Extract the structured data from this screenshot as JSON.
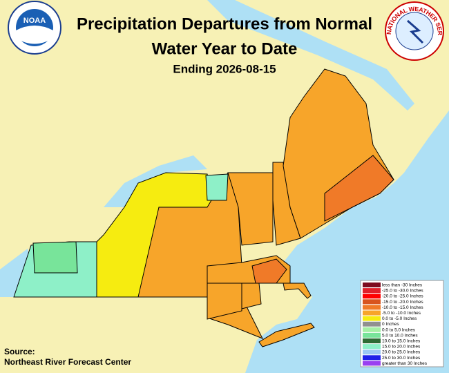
{
  "header": {
    "title": "Precipitation Departures from Normal",
    "subtitle": "Water Year to Date",
    "date_line": "Ending 2026-08-15"
  },
  "logos": {
    "noaa": "NOAA",
    "nws": "NATIONAL WEATHER SERVICE"
  },
  "source": {
    "label": "Source:",
    "text": "Northeast River Forecast Center"
  },
  "legend": {
    "items": [
      {
        "label": "less than -30 Inches",
        "color": "#7d0a1e"
      },
      {
        "label": "-25.0 to -30.0 Inches",
        "color": "#e0202a"
      },
      {
        "label": "-20.0 to -25.0 Inches",
        "color": "#ff0000"
      },
      {
        "label": "-15.0 to -20.0 Inches",
        "color": "#d8541e"
      },
      {
        "label": "-10.0 to -15.0 Inches",
        "color": "#f07a28"
      },
      {
        "label": "-5.0 to -10.0 Inches",
        "color": "#f7a52a"
      },
      {
        "label": "0.0 to -5.0 Inches",
        "color": "#f6ec10"
      },
      {
        "label": "0 Inches",
        "color": "#909090"
      },
      {
        "label": "0.0 to 5.0 Inches",
        "color": "#a6f0a6"
      },
      {
        "label": "5.0 to 10.0 Inches",
        "color": "#78e49a"
      },
      {
        "label": "10.0 to 15.0 Inches",
        "color": "#2e6b34"
      },
      {
        "label": "15.0 to 20.0 Inches",
        "color": "#8ef0c8"
      },
      {
        "label": "20.0 to 25.0 Inches",
        "color": "#9cc8f4"
      },
      {
        "label": "25.0 to 30.0 Inches",
        "color": "#2020e8"
      },
      {
        "label": "greater than 30 Inches",
        "color": "#9a40f0"
      }
    ]
  }
}
